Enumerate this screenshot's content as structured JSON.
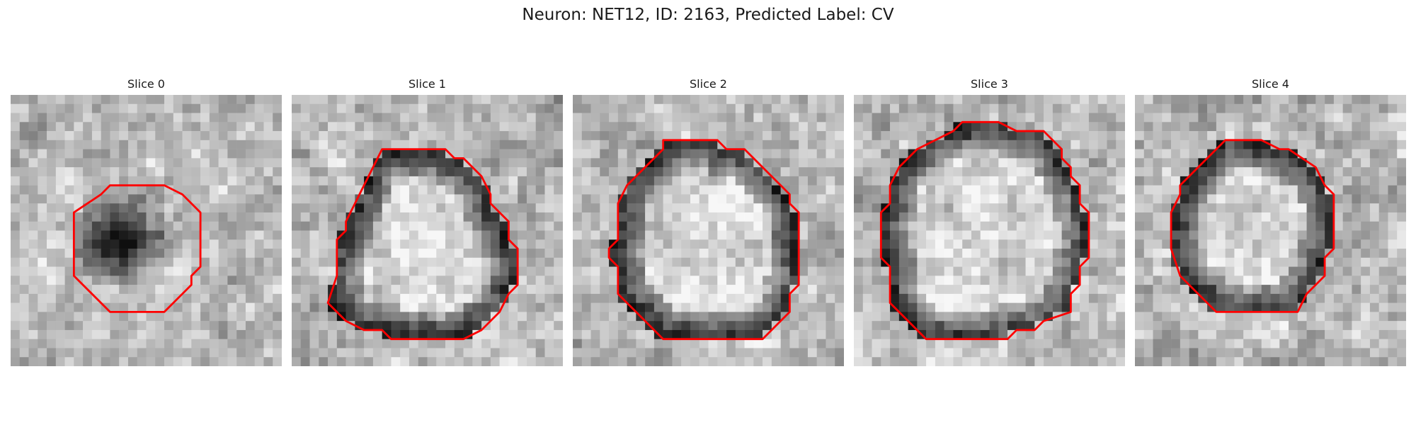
{
  "figure": {
    "title": "Neuron: NET12, ID: 2163, Predicted Label: CV"
  },
  "outline_color": "#ff0000",
  "panels": [
    {
      "title": "Slice 0",
      "seed": 11,
      "dark_ring": false,
      "dark_blob": true,
      "contour": [
        [
          12,
          10
        ],
        [
          17,
          10
        ],
        [
          19,
          11
        ],
        [
          21,
          13
        ],
        [
          21,
          19
        ],
        [
          20,
          20
        ],
        [
          20,
          21
        ],
        [
          17,
          24
        ],
        [
          11,
          24
        ],
        [
          7,
          20
        ],
        [
          7,
          13
        ],
        [
          10,
          11
        ],
        [
          11,
          10
        ]
      ]
    },
    {
      "title": "Slice 1",
      "seed": 23,
      "dark_ring": true,
      "dark_blob": false,
      "contour": [
        [
          10,
          6
        ],
        [
          17,
          6
        ],
        [
          18,
          7
        ],
        [
          19,
          7
        ],
        [
          21,
          9
        ],
        [
          22,
          11
        ],
        [
          22,
          12
        ],
        [
          24,
          14
        ],
        [
          24,
          16
        ],
        [
          25,
          17
        ],
        [
          25,
          21
        ],
        [
          24,
          22
        ],
        [
          23,
          24
        ],
        [
          22,
          25
        ],
        [
          21,
          26
        ],
        [
          19,
          27
        ],
        [
          11,
          27
        ],
        [
          10,
          26
        ],
        [
          8,
          26
        ],
        [
          6,
          25
        ],
        [
          4,
          23
        ],
        [
          5,
          20
        ],
        [
          5,
          16
        ],
        [
          6,
          15
        ],
        [
          6,
          14
        ],
        [
          7,
          12
        ],
        [
          8,
          10
        ]
      ]
    },
    {
      "title": "Slice 2",
      "seed": 37,
      "dark_ring": true,
      "dark_blob": false,
      "contour": [
        [
          10,
          5
        ],
        [
          16,
          5
        ],
        [
          17,
          6
        ],
        [
          19,
          6
        ],
        [
          23,
          10
        ],
        [
          24,
          11
        ],
        [
          24,
          12
        ],
        [
          25,
          13
        ],
        [
          25,
          21
        ],
        [
          24,
          22
        ],
        [
          24,
          24
        ],
        [
          23,
          25
        ],
        [
          21,
          27
        ],
        [
          10,
          27
        ],
        [
          8,
          25
        ],
        [
          5,
          22
        ],
        [
          5,
          19
        ],
        [
          4,
          18
        ],
        [
          4,
          17
        ],
        [
          5,
          16
        ],
        [
          5,
          12
        ],
        [
          6,
          10
        ],
        [
          10,
          6
        ]
      ]
    },
    {
      "title": "Slice 3",
      "seed": 51,
      "dark_ring": true,
      "dark_blob": false,
      "contour": [
        [
          12,
          3
        ],
        [
          16,
          3
        ],
        [
          18,
          4
        ],
        [
          21,
          4
        ],
        [
          22,
          5
        ],
        [
          23,
          6
        ],
        [
          23,
          7
        ],
        [
          24,
          8
        ],
        [
          24,
          9
        ],
        [
          25,
          10
        ],
        [
          25,
          12
        ],
        [
          26,
          13
        ],
        [
          26,
          15
        ],
        [
          26,
          18
        ],
        [
          25,
          19
        ],
        [
          25,
          21
        ],
        [
          24,
          22
        ],
        [
          24,
          24
        ],
        [
          21,
          25
        ],
        [
          20,
          26
        ],
        [
          19,
          26
        ],
        [
          18,
          26
        ],
        [
          17,
          27
        ],
        [
          13,
          27
        ],
        [
          8,
          27
        ],
        [
          6,
          25
        ],
        [
          5,
          24
        ],
        [
          4,
          23
        ],
        [
          4,
          21
        ],
        [
          4,
          19
        ],
        [
          3,
          18
        ],
        [
          3,
          13
        ],
        [
          4,
          12
        ],
        [
          4,
          10
        ],
        [
          5,
          8
        ],
        [
          6,
          7
        ],
        [
          7,
          6
        ],
        [
          9,
          5
        ],
        [
          11,
          4
        ]
      ]
    },
    {
      "title": "Slice 4",
      "seed": 67,
      "dark_ring": true,
      "dark_blob": false,
      "contour": [
        [
          9,
          6
        ],
        [
          10,
          5
        ],
        [
          14,
          5
        ],
        [
          16,
          6
        ],
        [
          17,
          6
        ],
        [
          20,
          8
        ],
        [
          21,
          10
        ],
        [
          22,
          11
        ],
        [
          22,
          17
        ],
        [
          21,
          18
        ],
        [
          21,
          20
        ],
        [
          20,
          21
        ],
        [
          19,
          22
        ],
        [
          18,
          24
        ],
        [
          16,
          24
        ],
        [
          13,
          24
        ],
        [
          9,
          24
        ],
        [
          7,
          22
        ],
        [
          5,
          20
        ],
        [
          4,
          17
        ],
        [
          4,
          13
        ],
        [
          5,
          11
        ],
        [
          5,
          10
        ],
        [
          7,
          8
        ]
      ]
    }
  ]
}
